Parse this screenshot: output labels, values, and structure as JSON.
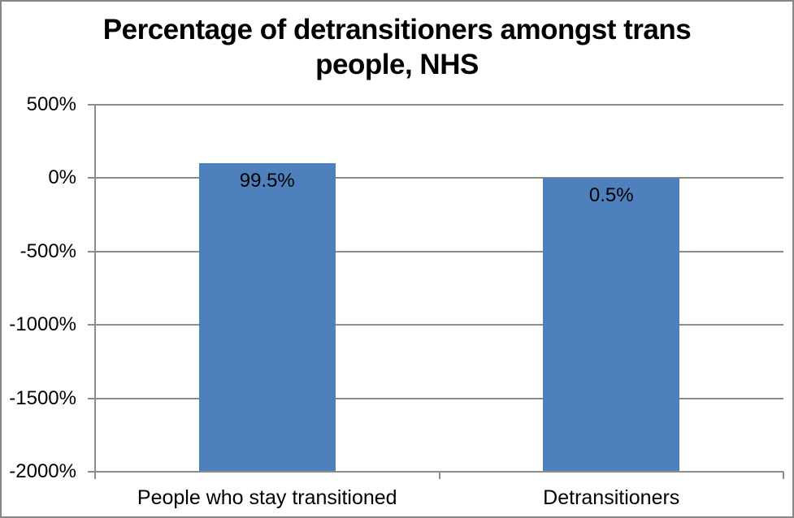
{
  "chart_data": {
    "type": "bar",
    "title": "Percentage of detransitioners amongst trans people, NHS",
    "title_lines": [
      "Percentage of detransitioners amongst trans",
      "people, NHS"
    ],
    "categories": [
      "People who stay transitioned",
      "Detransitioners"
    ],
    "values": [
      99.5,
      0.5
    ],
    "data_labels": [
      "99.5%",
      "0.5%"
    ],
    "unit": "%",
    "xlabel": "",
    "ylabel": "",
    "ylim": [
      -2000,
      500
    ],
    "yticks": [
      500,
      0,
      -500,
      -1000,
      -1500,
      -2000
    ],
    "ytick_labels": [
      "500%",
      "0%",
      "-500%",
      "-1000%",
      "-1500%",
      "-2000%"
    ],
    "grid": true,
    "legend": false,
    "bars_rendered_from_axis_minimum": true,
    "colors": {
      "bar_fill": "#4d80bd",
      "gridline": "#8c8c8c",
      "axis_line": "#8c8c8c",
      "text": "#000000",
      "background": "#ffffff",
      "frame_border": "#878787"
    }
  }
}
